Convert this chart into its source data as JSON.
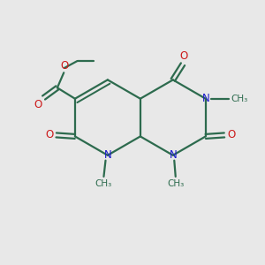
{
  "bg_color": "#e8e8e8",
  "bond_color": "#2d6b4e",
  "n_color": "#1a1acc",
  "o_color": "#cc1a1a",
  "line_width": 1.6,
  "font_size_atom": 8.5,
  "font_size_methyl": 7.5,
  "C8a": [
    5.3,
    6.3
  ],
  "C4a": [
    5.3,
    4.85
  ],
  "hs": 1.45
}
